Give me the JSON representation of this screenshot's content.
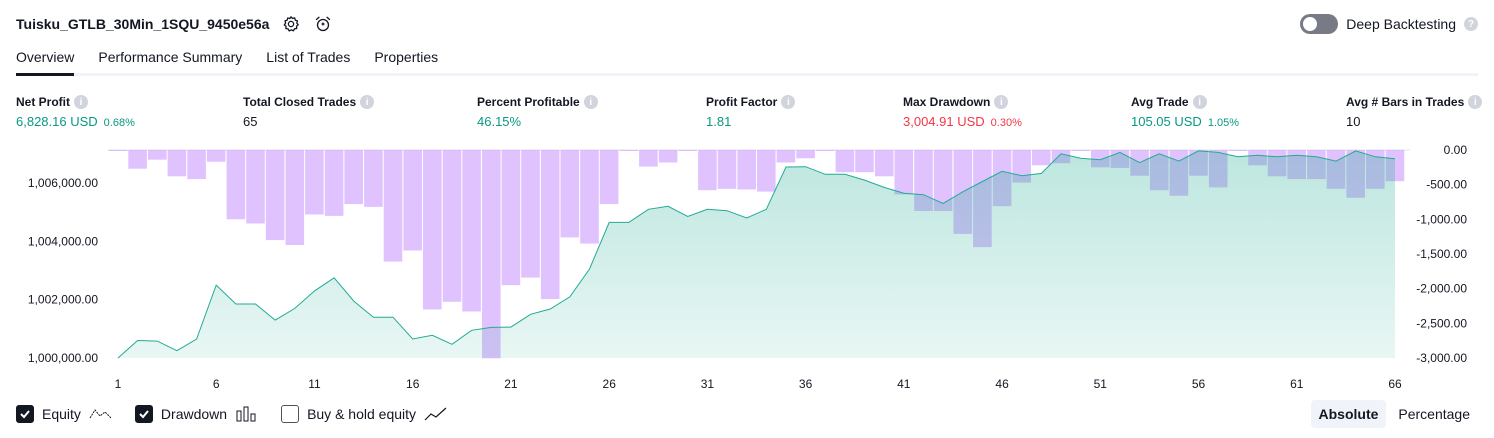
{
  "header": {
    "title": "Tuisku_GTLB_30Min_1SQU_9450e56a",
    "settings_icon": "gear-icon",
    "alert_icon": "alarm-clock-icon"
  },
  "deep_backtesting": {
    "label": "Deep Backtesting",
    "enabled": false,
    "help": "?"
  },
  "tabs": [
    {
      "label": "Overview",
      "active": true
    },
    {
      "label": "Performance Summary",
      "active": false
    },
    {
      "label": "List of Trades",
      "active": false
    },
    {
      "label": "Properties",
      "active": false
    }
  ],
  "metrics": {
    "net_profit": {
      "label": "Net Profit",
      "value": "6,828.16 USD",
      "sub": "0.68%"
    },
    "total_closed_trades": {
      "label": "Total Closed Trades",
      "value": "65"
    },
    "percent_profitable": {
      "label": "Percent Profitable",
      "value": "46.15%"
    },
    "profit_factor": {
      "label": "Profit Factor",
      "value": "1.81"
    },
    "max_drawdown": {
      "label": "Max Drawdown",
      "value": "3,004.91 USD",
      "sub": "0.30%"
    },
    "avg_trade": {
      "label": "Avg Trade",
      "value": "105.05 USD",
      "sub": "1.05%"
    },
    "avg_bars": {
      "label": "Avg # Bars in Trades",
      "value": "10"
    },
    "info": "i"
  },
  "chart_data": {
    "type": "line",
    "x": [
      1,
      2,
      3,
      4,
      5,
      6,
      7,
      8,
      9,
      10,
      11,
      12,
      13,
      14,
      15,
      16,
      17,
      18,
      19,
      20,
      21,
      22,
      23,
      24,
      25,
      26,
      27,
      28,
      29,
      30,
      31,
      32,
      33,
      34,
      35,
      36,
      37,
      38,
      39,
      40,
      41,
      42,
      43,
      44,
      45,
      46,
      47,
      48,
      49,
      50,
      51,
      52,
      53,
      54,
      55,
      56,
      57,
      58,
      59,
      60,
      61,
      62,
      63,
      64,
      65,
      66
    ],
    "x_ticks": [
      "1",
      "6",
      "11",
      "16",
      "21",
      "26",
      "31",
      "36",
      "41",
      "46",
      "51",
      "56",
      "61",
      "66"
    ],
    "series": [
      {
        "name": "Equity",
        "axis": "left",
        "values": [
          1000000,
          1000600,
          1000580,
          1000250,
          1000650,
          1002500,
          1001850,
          1001850,
          1001300,
          1001700,
          1002300,
          1002750,
          1001950,
          1001400,
          1001400,
          1000650,
          1000780,
          1000470,
          1000950,
          1001050,
          1001060,
          1001500,
          1001680,
          1002100,
          1003050,
          1004650,
          1004650,
          1005100,
          1005200,
          1004850,
          1005100,
          1005050,
          1004800,
          1005100,
          1006550,
          1006560,
          1006300,
          1006300,
          1006100,
          1005850,
          1005650,
          1005600,
          1005300,
          1005700,
          1006050,
          1006400,
          1006250,
          1006330,
          1007000,
          1006850,
          1006800,
          1007050,
          1006700,
          1007000,
          1006750,
          1007100,
          1007050,
          1006900,
          1006950,
          1006900,
          1006950,
          1006900,
          1006750,
          1007100,
          1006900,
          1006830
        ],
        "color": "#22ab94",
        "fill": true
      },
      {
        "name": "Drawdown",
        "axis": "right",
        "type": "bar",
        "values": [
          0,
          -270,
          -140,
          -380,
          -420,
          -170,
          -1000,
          -1060,
          -1300,
          -1370,
          -930,
          -950,
          -780,
          -820,
          -1610,
          -1450,
          -2300,
          -2190,
          -2330,
          -3004.91,
          -1950,
          -1840,
          -2150,
          -1260,
          -1350,
          -780,
          0,
          -240,
          -180,
          0,
          -580,
          -560,
          -570,
          -600,
          -180,
          -120,
          0,
          -320,
          -320,
          -380,
          -640,
          -880,
          -880,
          -1210,
          -1400,
          -810,
          -470,
          -220,
          -190,
          0,
          -250,
          -260,
          -370,
          -580,
          -660,
          -370,
          -540,
          -10,
          -220,
          -380,
          -420,
          -420,
          -560,
          -690,
          -560,
          -450
        ],
        "color": "#c792fe"
      }
    ],
    "left_axis": {
      "ticks": [
        "1,000,000.00",
        "1,002,000.00",
        "1,004,000.00",
        "1,006,000.00"
      ],
      "tick_values": [
        1000000,
        1002000,
        1004000,
        1006000
      ],
      "range": [
        1000000,
        1007200
      ]
    },
    "right_axis": {
      "ticks": [
        "0.00",
        "-500.00",
        "-1,000.00",
        "-1,500.00",
        "-2,000.00",
        "-2,500.00",
        "-3,000.00"
      ],
      "tick_values": [
        0,
        -500,
        -1000,
        -1500,
        -2000,
        -2500,
        -3000
      ],
      "range": [
        -3000,
        0
      ]
    },
    "grid": false,
    "legend": "bottom-left"
  },
  "legend": {
    "equity": {
      "label": "Equity",
      "checked": true
    },
    "drawdown": {
      "label": "Drawdown",
      "checked": true
    },
    "buy_hold": {
      "label": "Buy & hold equity",
      "checked": false
    }
  },
  "mode": {
    "absolute": "Absolute",
    "percentage": "Percentage",
    "selected": "Absolute"
  }
}
